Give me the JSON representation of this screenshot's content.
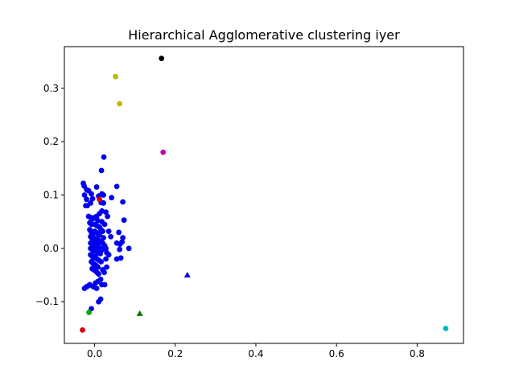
{
  "chart_data": {
    "type": "scatter",
    "title": "Hierarchical Agglomerative clustering iyer",
    "xlabel": "",
    "ylabel": "",
    "xlim": [
      -0.075,
      0.915
    ],
    "ylim": [
      -0.178,
      0.378
    ],
    "x_ticks": [
      0.0,
      0.2,
      0.4,
      0.6,
      0.8
    ],
    "x_tick_labels": [
      "0.0",
      "0.2",
      "0.4",
      "0.6",
      "0.8"
    ],
    "y_ticks": [
      -0.1,
      0.0,
      0.1,
      0.2,
      0.3
    ],
    "y_tick_labels": [
      "−0.1",
      "0.0",
      "0.1",
      "0.2",
      "0.3"
    ],
    "grid": false,
    "legend": "none",
    "series": [
      {
        "color": "#0000ee",
        "marker": "circle",
        "points": [
          [
            -0.028,
            0.122
          ],
          [
            -0.026,
            0.117
          ],
          [
            -0.02,
            0.11
          ],
          [
            -0.025,
            0.1
          ],
          [
            -0.02,
            0.092
          ],
          [
            -0.022,
            0.08
          ],
          [
            -0.018,
            0.08
          ],
          [
            -0.01,
            0.085
          ],
          [
            -0.015,
            0.108
          ],
          [
            -0.008,
            0.102
          ],
          [
            -0.005,
            0.093
          ],
          [
            0.005,
            0.115
          ],
          [
            0.01,
            0.098
          ],
          [
            0.018,
            0.102
          ],
          [
            0.022,
            0.1
          ],
          [
            0.016,
            0.086
          ],
          [
            0.022,
            0.085
          ],
          [
            0.017,
            0.146
          ],
          [
            0.023,
            0.171
          ],
          [
            0.042,
            0.095
          ],
          [
            0.055,
            0.116
          ],
          [
            0.07,
            0.087
          ],
          [
            0.073,
            0.053
          ],
          [
            0.07,
            0.02
          ],
          [
            0.068,
            0.012
          ],
          [
            0.063,
            0.008
          ],
          [
            0.055,
            0.01
          ],
          [
            0.085,
            0.0
          ],
          [
            0.062,
            -0.002
          ],
          [
            0.065,
            -0.018
          ],
          [
            0.055,
            -0.02
          ],
          [
            0.06,
            0.03
          ],
          [
            0.04,
            0.022
          ],
          [
            0.035,
            0.032
          ],
          [
            0.028,
            0.068
          ],
          [
            0.032,
            0.06
          ],
          [
            0.025,
            0.045
          ],
          [
            0.018,
            0.07
          ],
          [
            0.012,
            0.065
          ],
          [
            0.018,
            0.05
          ],
          [
            -0.015,
            0.06
          ],
          [
            -0.01,
            0.058
          ],
          [
            -0.005,
            0.055
          ],
          [
            0.0,
            0.058
          ],
          [
            0.005,
            0.06
          ],
          [
            0.008,
            0.052
          ],
          [
            -0.012,
            0.048
          ],
          [
            -0.008,
            0.045
          ],
          [
            0.0,
            0.045
          ],
          [
            0.006,
            0.042
          ],
          [
            0.012,
            0.04
          ],
          [
            0.016,
            0.035
          ],
          [
            0.02,
            0.032
          ],
          [
            0.022,
            0.02
          ],
          [
            0.02,
            0.01
          ],
          [
            0.025,
            0.005
          ],
          [
            0.028,
            0.0
          ],
          [
            0.03,
            -0.008
          ],
          [
            0.035,
            -0.012
          ],
          [
            0.028,
            -0.02
          ],
          [
            -0.012,
            0.035
          ],
          [
            -0.008,
            0.03
          ],
          [
            -0.004,
            0.028
          ],
          [
            0.0,
            0.032
          ],
          [
            0.004,
            0.03
          ],
          [
            0.008,
            0.028
          ],
          [
            0.012,
            0.025
          ],
          [
            -0.01,
            0.022
          ],
          [
            -0.006,
            0.018
          ],
          [
            -0.002,
            0.02
          ],
          [
            0.002,
            0.015
          ],
          [
            0.006,
            0.018
          ],
          [
            0.01,
            0.015
          ],
          [
            0.014,
            0.012
          ],
          [
            -0.01,
            0.01
          ],
          [
            -0.006,
            0.008
          ],
          [
            -0.002,
            0.005
          ],
          [
            0.002,
            0.008
          ],
          [
            0.006,
            0.005
          ],
          [
            0.01,
            0.003
          ],
          [
            0.014,
            0.0
          ],
          [
            0.018,
            -0.003
          ],
          [
            -0.01,
            0.0
          ],
          [
            -0.006,
            -0.002
          ],
          [
            -0.002,
            -0.005
          ],
          [
            0.002,
            -0.002
          ],
          [
            0.006,
            -0.006
          ],
          [
            0.01,
            -0.008
          ],
          [
            0.014,
            -0.01
          ],
          [
            -0.01,
            -0.012
          ],
          [
            -0.006,
            -0.015
          ],
          [
            -0.002,
            -0.018
          ],
          [
            0.002,
            -0.015
          ],
          [
            0.006,
            -0.02
          ],
          [
            0.01,
            -0.022
          ],
          [
            0.016,
            -0.025
          ],
          [
            -0.008,
            -0.025
          ],
          [
            -0.004,
            -0.028
          ],
          [
            0.0,
            -0.03
          ],
          [
            0.004,
            -0.032
          ],
          [
            0.008,
            -0.035
          ],
          [
            -0.006,
            -0.038
          ],
          [
            -0.002,
            -0.04
          ],
          [
            0.002,
            -0.042
          ],
          [
            0.006,
            -0.045
          ],
          [
            0.01,
            -0.048
          ],
          [
            0.02,
            -0.04
          ],
          [
            0.03,
            -0.035
          ],
          [
            0.024,
            -0.045
          ],
          [
            0.015,
            -0.058
          ],
          [
            0.008,
            -0.062
          ],
          [
            0.002,
            -0.065
          ],
          [
            0.018,
            -0.068
          ],
          [
            0.025,
            -0.068
          ],
          [
            0.005,
            -0.075
          ],
          [
            0.01,
            -0.1
          ],
          [
            0.015,
            -0.095
          ],
          [
            -0.003,
            -0.072
          ],
          [
            -0.015,
            -0.07
          ],
          [
            -0.012,
            -0.068
          ],
          [
            -0.025,
            -0.075
          ],
          [
            -0.02,
            -0.072
          ],
          [
            -0.008,
            -0.113
          ]
        ]
      },
      {
        "color": "#dd0000",
        "marker": "circle",
        "points": [
          [
            -0.03,
            -0.153
          ],
          [
            0.012,
            0.092
          ]
        ]
      },
      {
        "color": "#00aa00",
        "marker": "circle",
        "points": [
          [
            -0.014,
            -0.12
          ]
        ]
      },
      {
        "color": "#007700",
        "marker": "triangle",
        "points": [
          [
            0.112,
            -0.122
          ]
        ]
      },
      {
        "color": "#0000ee",
        "marker": "triangle",
        "points": [
          [
            0.23,
            -0.05
          ]
        ]
      },
      {
        "color": "#bbbb00",
        "marker": "circle",
        "points": [
          [
            0.052,
            0.322
          ],
          [
            0.062,
            0.271
          ]
        ]
      },
      {
        "color": "#000000",
        "marker": "circle",
        "points": [
          [
            0.166,
            0.356
          ]
        ]
      },
      {
        "color": "#bb00bb",
        "marker": "circle",
        "points": [
          [
            0.17,
            0.18
          ]
        ]
      },
      {
        "color": "#00bbbb",
        "marker": "circle",
        "points": [
          [
            0.871,
            -0.15
          ]
        ]
      }
    ]
  }
}
